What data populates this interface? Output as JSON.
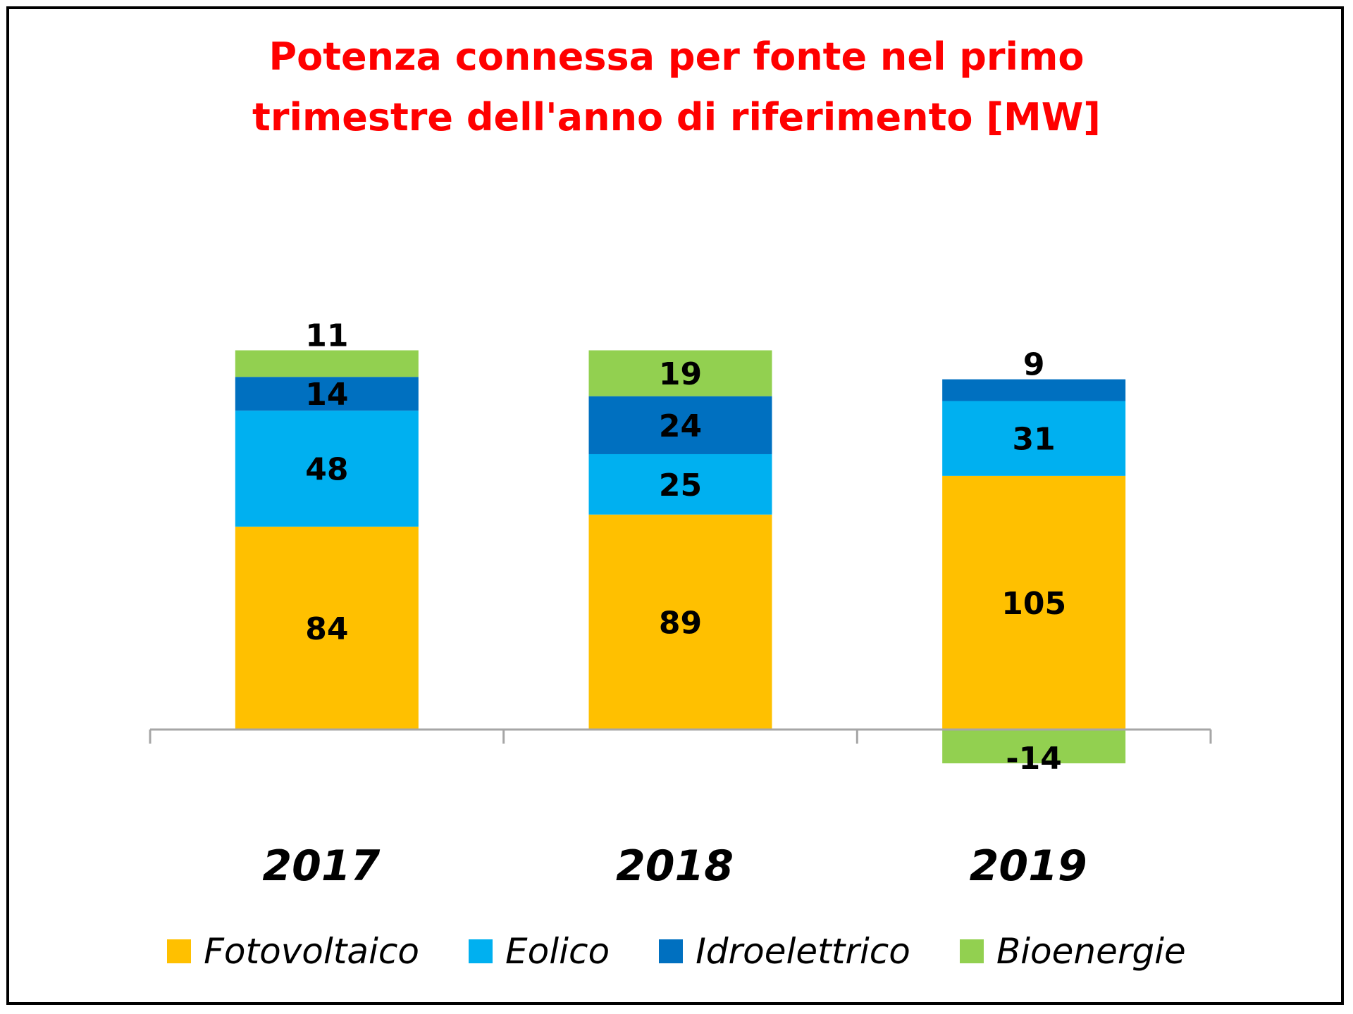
{
  "chart_data": {
    "type": "bar",
    "stacked": true,
    "title": "Potenza connessa per fonte nel primo trimestre dell'anno di riferimento [MW]",
    "title_lines": [
      "Potenza connessa per fonte nel primo",
      "trimestre dell'anno di riferimento [MW]"
    ],
    "categories": [
      "2017",
      "2018",
      "2019"
    ],
    "series": [
      {
        "name": "Fotovoltaico",
        "color": "#FFC000",
        "values": [
          84,
          89,
          105
        ]
      },
      {
        "name": "Eolico",
        "color": "#00B0F0",
        "values": [
          48,
          25,
          31
        ]
      },
      {
        "name": "Idroelettrico",
        "color": "#0070C0",
        "values": [
          14,
          24,
          9
        ]
      },
      {
        "name": "Bioenergie",
        "color": "#92D050",
        "values": [
          11,
          19,
          -14
        ]
      }
    ],
    "xlabel": "",
    "ylabel": "",
    "ylim": [
      -14,
      157
    ],
    "grid": false,
    "legend_position": "bottom"
  }
}
